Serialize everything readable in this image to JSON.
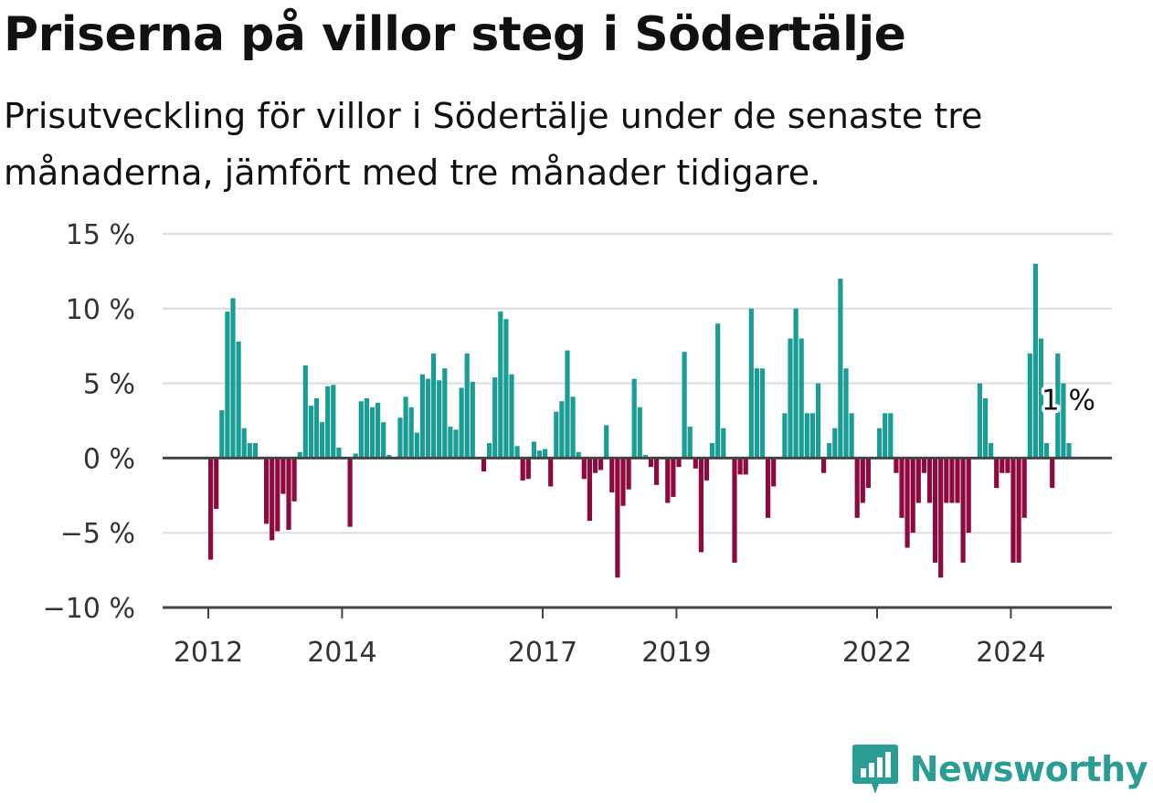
{
  "header": {
    "title": "Priserna på villor steg i Södertälje",
    "subtitle": "Prisutveckling för villor i Södertälje under de senaste tre månaderna, jämfört med tre månader tidigare."
  },
  "logo": {
    "icon": "chart-bubble-icon",
    "text": "Newsworthy"
  },
  "colors": {
    "positive": "#1a9d94",
    "negative": "#8e0a3e",
    "grid": "#dddddd",
    "axis": "#444444"
  },
  "chart_data": {
    "type": "bar",
    "x_start": "2012-01",
    "frequency": "monthly",
    "xticks": [
      {
        "label": "2012",
        "date": "2012-01"
      },
      {
        "label": "2014",
        "date": "2014-01"
      },
      {
        "label": "2017",
        "date": "2017-01"
      },
      {
        "label": "2019",
        "date": "2019-01"
      },
      {
        "label": "2022",
        "date": "2022-01"
      },
      {
        "label": "2024",
        "date": "2024-01"
      }
    ],
    "yticks": [
      {
        "value": 15,
        "label": "15 %"
      },
      {
        "value": 10,
        "label": "10 %"
      },
      {
        "value": 5,
        "label": "5 %"
      },
      {
        "value": 0,
        "label": "0 %"
      },
      {
        "value": -5,
        "label": "−5 %"
      },
      {
        "value": -10,
        "label": "−10 %"
      }
    ],
    "ylim": [
      -10,
      15
    ],
    "grid": true,
    "values": [
      -6.8,
      -3.4,
      3.2,
      9.8,
      10.7,
      7.8,
      2.0,
      1.0,
      1.0,
      0.0,
      -4.4,
      -5.5,
      -4.9,
      -2.4,
      -4.8,
      -2.9,
      0.4,
      6.2,
      3.5,
      4.0,
      2.4,
      4.8,
      4.9,
      0.7,
      0.0,
      -4.6,
      0.3,
      3.8,
      4.0,
      3.4,
      3.7,
      2.4,
      0.2,
      0.0,
      2.7,
      4.1,
      3.4,
      1.7,
      5.6,
      5.3,
      7.0,
      5.2,
      6.0,
      2.1,
      1.9,
      4.7,
      7.0,
      5.1,
      0.0,
      -0.9,
      1.0,
      5.4,
      9.8,
      9.3,
      5.6,
      0.8,
      -1.5,
      -1.4,
      1.1,
      0.5,
      0.6,
      -1.9,
      3.1,
      3.8,
      7.2,
      4.1,
      0.4,
      -1.4,
      -4.2,
      -1.0,
      -0.8,
      2.2,
      -2.3,
      -8.0,
      -3.2,
      -2.1,
      5.3,
      3.4,
      0.2,
      -0.6,
      -1.8,
      0.0,
      -3.0,
      -2.6,
      -0.6,
      7.1,
      2.1,
      -0.7,
      -6.3,
      -1.5,
      1.0,
      9.0,
      2.0,
      0.0,
      -7.0,
      -1.1,
      -1.1,
      10.0,
      6.0,
      6.0,
      -4.0,
      -1.9,
      0.0,
      3.0,
      8.0,
      10.0,
      8.0,
      3.0,
      3.0,
      5.0,
      -1.0,
      1.0,
      2.0,
      12.0,
      6.0,
      3.0,
      -4.0,
      -3.0,
      -2.0,
      0.0,
      2.0,
      3.0,
      3.0,
      -1.0,
      -4.0,
      -6.0,
      -5.0,
      -3.0,
      -1.0,
      -3.0,
      -7.0,
      -8.0,
      -3.0,
      -3.0,
      -3.0,
      -7.0,
      -5.0,
      0.0,
      5.0,
      4.0,
      1.0,
      -2.0,
      -1.0,
      -1.0,
      -7.0,
      -7.0,
      -4.0,
      7.0,
      13.0,
      8.0,
      1.0,
      -2.0,
      7.0,
      5.0,
      1.0
    ],
    "annotation": {
      "label": "1 %",
      "target": "last"
    }
  }
}
